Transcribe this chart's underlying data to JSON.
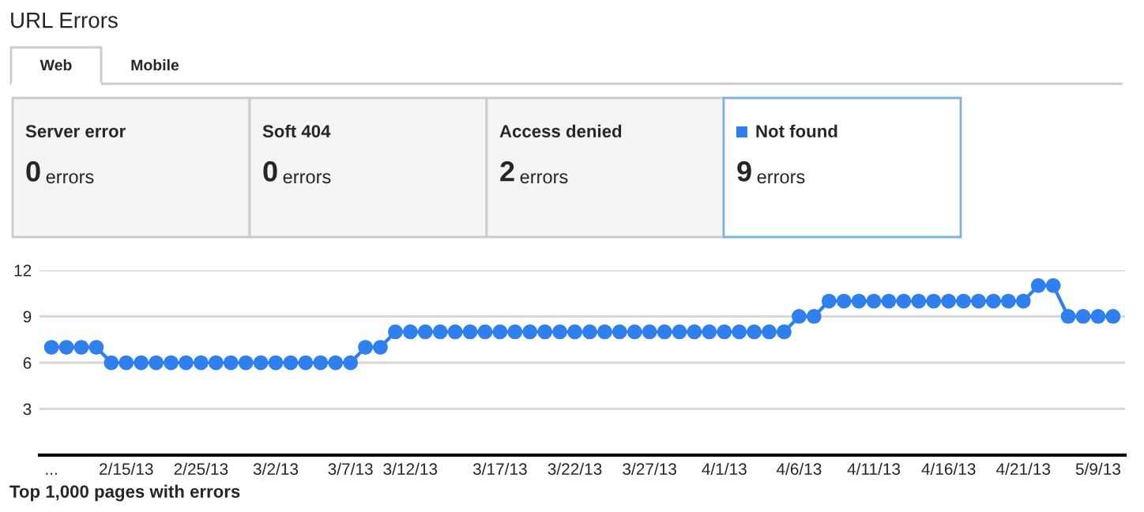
{
  "chart_data": [
    {
      "type": "other",
      "title": "URL Errors",
      "annotations": [
        "Web",
        "Mobile",
        "Server error",
        "0 errors",
        "Soft 404",
        "0 errors",
        "Access denied",
        "2 errors",
        "Not found",
        "9 errors"
      ],
      "color": "#2f80ed"
    },
    {
      "type": "line",
      "color": "#2f80ed",
      "marker": "circle",
      "line_style": "solid",
      "grid": "y",
      "ylim": [
        0,
        12
      ],
      "yticks": [
        3,
        6,
        9,
        12
      ],
      "legend": false,
      "categories": [
        "...",
        null,
        null,
        null,
        null,
        "2/15/13",
        null,
        null,
        null,
        null,
        "2/25/13",
        null,
        null,
        null,
        null,
        "3/2/13",
        null,
        null,
        null,
        null,
        "3/7/13",
        null,
        null,
        null,
        "3/12/13",
        null,
        null,
        null,
        null,
        null,
        "3/17/13",
        null,
        null,
        null,
        null,
        "3/22/13",
        null,
        null,
        null,
        null,
        "3/27/13",
        null,
        null,
        null,
        null,
        "4/1/13",
        null,
        null,
        null,
        null,
        "4/6/13",
        null,
        null,
        null,
        null,
        "4/11/13",
        null,
        null,
        null,
        null,
        "4/16/13",
        null,
        null,
        null,
        null,
        "4/21/13",
        null,
        null,
        null,
        null,
        "5/9/13",
        null
      ],
      "values": [
        7,
        7,
        7,
        7,
        6,
        6,
        6,
        6,
        6,
        6,
        6,
        6,
        6,
        6,
        6,
        6,
        6,
        6,
        6,
        6,
        6,
        7,
        7,
        8,
        8,
        8,
        8,
        8,
        8,
        8,
        8,
        8,
        8,
        8,
        8,
        8,
        8,
        8,
        8,
        8,
        8,
        8,
        8,
        8,
        8,
        8,
        8,
        8,
        8,
        8,
        9,
        9,
        10,
        10,
        10,
        10,
        10,
        10,
        10,
        10,
        10,
        10,
        10,
        10,
        10,
        10,
        11,
        11,
        9,
        9,
        9,
        9
      ],
      "annotations": [
        "Top 1,000 pages with errors"
      ]
    }
  ]
}
